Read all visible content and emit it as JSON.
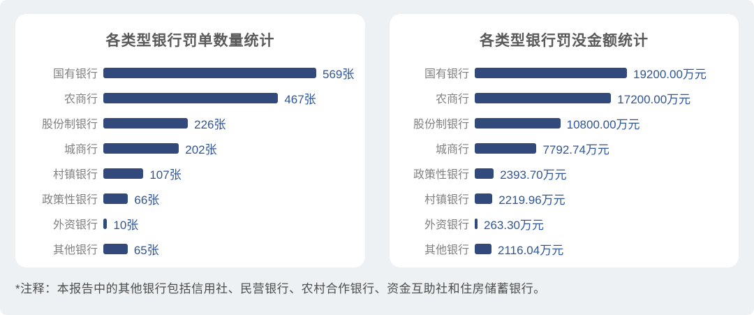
{
  "page": {
    "note": "*注释：本报告中的其他银行包括信用社、民营银行、农村合作银行、资金互助社和住房储蓄银行。"
  },
  "colors": {
    "bar": "#32497B",
    "value_text": "#2F5597",
    "category_text": "#808080",
    "title_text": "#595959",
    "note_text": "#4D4D4D",
    "card_background": "#FFFFFF",
    "page_background": "#EEF1F3"
  },
  "chart_data": [
    {
      "type": "bar",
      "orientation": "horizontal",
      "title": "各类型银行罚单数量统计",
      "unit": "张",
      "categories": [
        "国有银行",
        "农商行",
        "股份制银行",
        "城商行",
        "村镇银行",
        "政策性银行",
        "外资银行",
        "其他银行"
      ],
      "values": [
        569,
        467,
        226,
        202,
        107,
        66,
        10,
        65
      ],
      "value_labels": [
        "569张",
        "467张",
        "226张",
        "202张",
        "107张",
        "66张",
        "10张",
        "65张"
      ],
      "xlim": [
        0,
        569
      ],
      "grid": false,
      "legend": false
    },
    {
      "type": "bar",
      "orientation": "horizontal",
      "title": "各类型银行罚没金额统计",
      "unit": "万元",
      "categories": [
        "国有银行",
        "农商行",
        "股份制银行",
        "城商行",
        "政策性银行",
        "村镇银行",
        "外资银行",
        "其他银行"
      ],
      "values": [
        19200.0,
        17200.0,
        10800.0,
        7792.74,
        2393.7,
        2219.96,
        263.3,
        2116.04
      ],
      "value_labels": [
        "19200.00万元",
        "17200.00万元",
        "10800.00万元",
        "7792.74万元",
        "2393.70万元",
        "2219.96万元",
        "263.30万元",
        "2116.04万元"
      ],
      "xlim": [
        0,
        19200
      ],
      "grid": false,
      "legend": false
    }
  ]
}
